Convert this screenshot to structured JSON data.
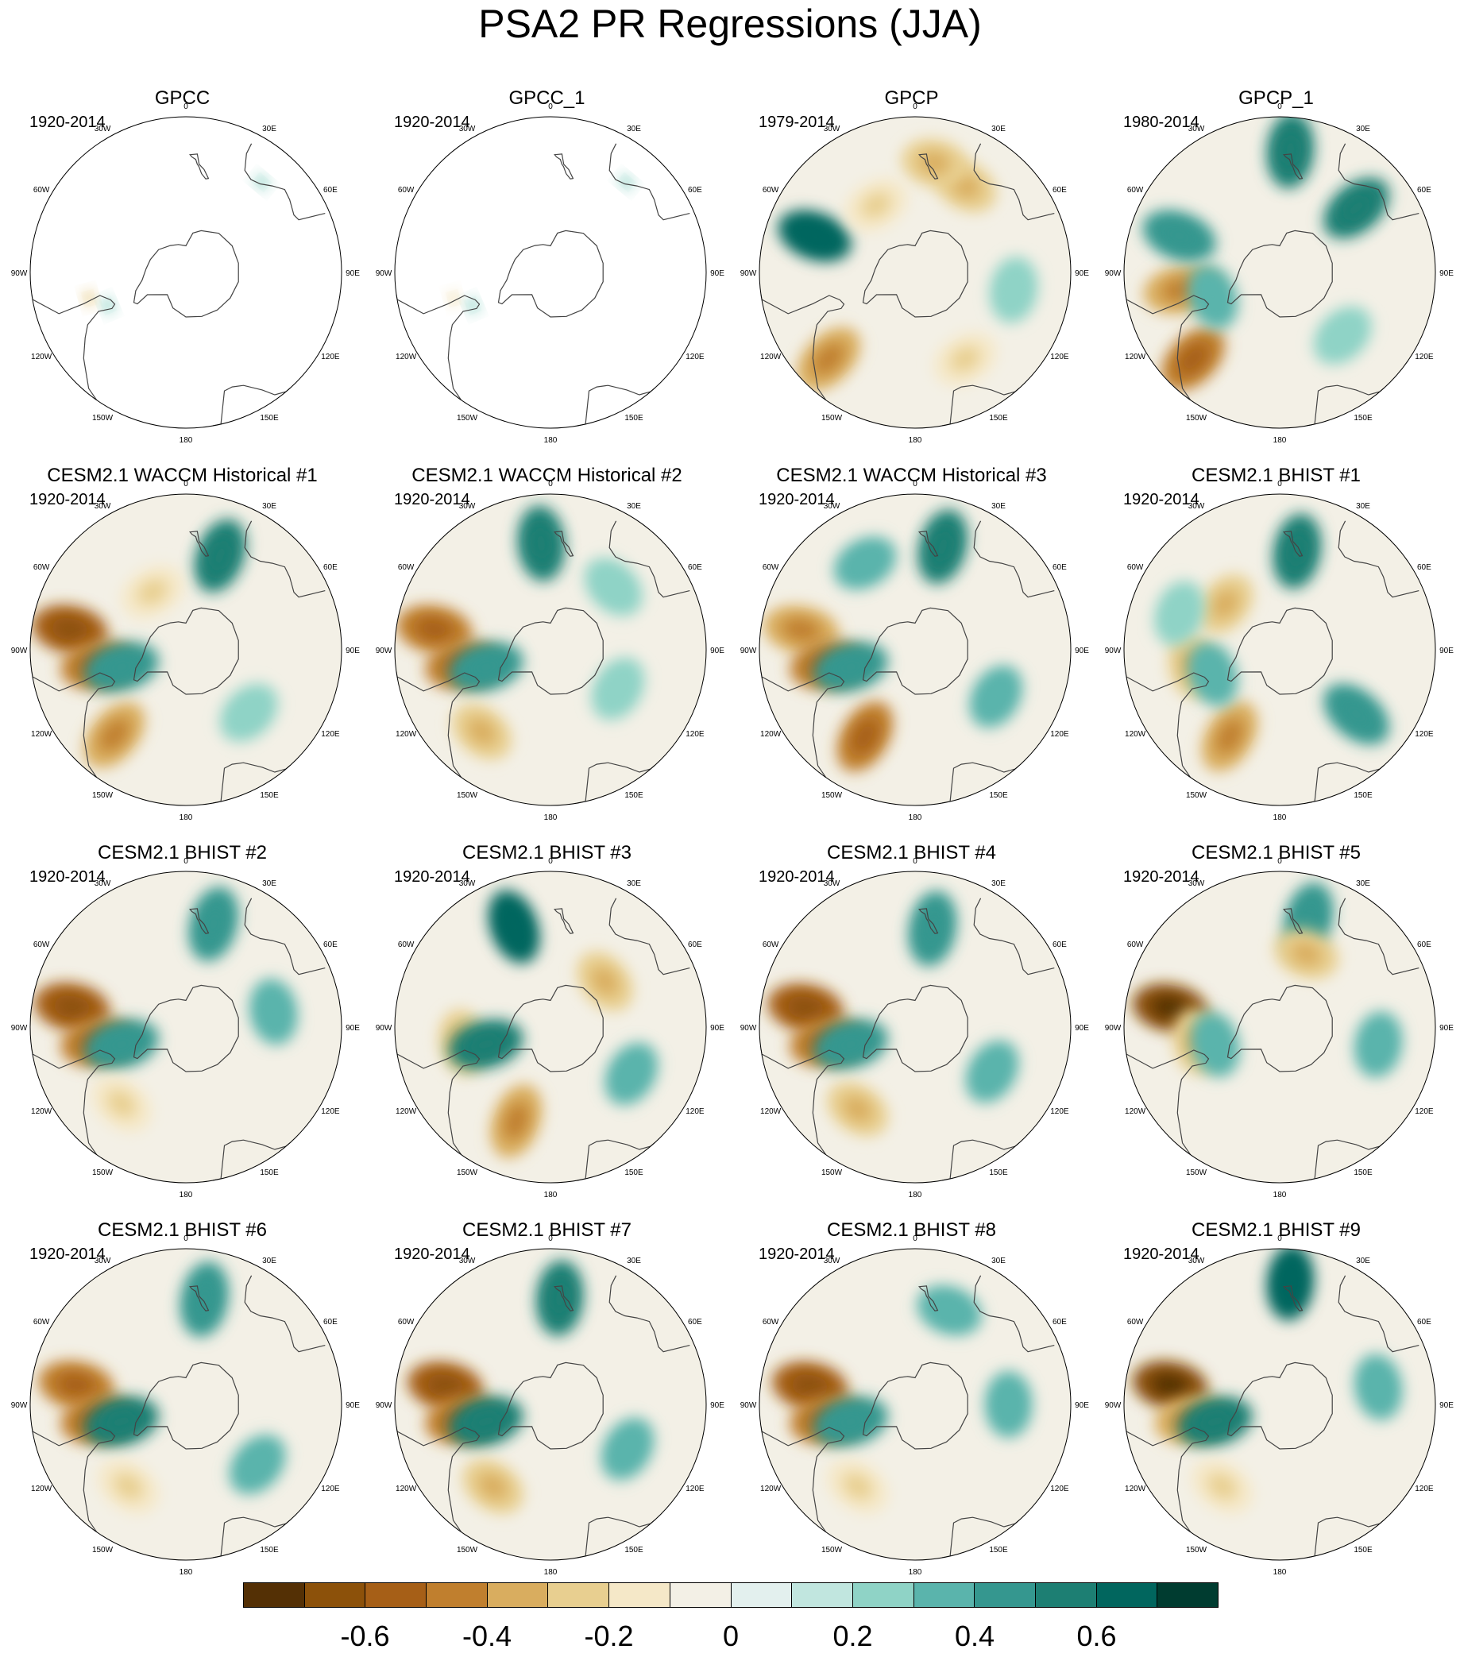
{
  "title": "PSA2 PR Regressions (JJA)",
  "chart_data": {
    "type": "heatmap",
    "projection": "south polar stereographic",
    "title": "PSA2 PR Regressions (JJA)",
    "longitude_labels": [
      "0",
      "30E",
      "60E",
      "90E",
      "120E",
      "150E",
      "180",
      "150W",
      "120W",
      "90W",
      "60W",
      "30W"
    ],
    "panels": [
      {
        "title": "GPCC",
        "period": "1920-2014",
        "coverage": "land only",
        "features": [
          {
            "lon": -75,
            "lat": -45,
            "value": -0.25
          },
          {
            "lon": -67,
            "lat": -52,
            "value": 0.2
          },
          {
            "lon": 140,
            "lat": -37,
            "value": 0.2
          }
        ]
      },
      {
        "title": "GPCC_1",
        "period": "1920-2014",
        "coverage": "land only",
        "features": [
          {
            "lon": -75,
            "lat": -45,
            "value": -0.2
          },
          {
            "lon": -67,
            "lat": -52,
            "value": 0.2
          },
          {
            "lon": 140,
            "lat": -37,
            "value": 0.25
          }
        ]
      },
      {
        "title": "GPCP",
        "period": "1979-2014",
        "features": [
          {
            "lon": -45,
            "lat": -35,
            "value": -0.4
          },
          {
            "lon": -110,
            "lat": -42,
            "value": 0.6
          },
          {
            "lon": 150,
            "lat": -45,
            "value": -0.3
          },
          {
            "lon": 170,
            "lat": -40,
            "value": -0.3
          },
          {
            "lon": 80,
            "lat": -45,
            "value": 0.2
          },
          {
            "lon": 30,
            "lat": -45,
            "value": -0.2
          },
          {
            "lon": -150,
            "lat": -55,
            "value": -0.2
          }
        ]
      },
      {
        "title": "GPCP_1",
        "period": "1980-2014",
        "features": [
          {
            "lon": -45,
            "lat": -35,
            "value": -0.5
          },
          {
            "lon": -80,
            "lat": -45,
            "value": -0.4
          },
          {
            "lon": -110,
            "lat": -42,
            "value": 0.4
          },
          {
            "lon": 175,
            "lat": -35,
            "value": 0.5
          },
          {
            "lon": 130,
            "lat": -45,
            "value": 0.5
          },
          {
            "lon": -70,
            "lat": -58,
            "value": 0.3
          },
          {
            "lon": 45,
            "lat": -50,
            "value": 0.2
          }
        ]
      },
      {
        "title": "CESM2.1 WACCM Historical #1",
        "period": "1920-2014",
        "features": [
          {
            "lon": -100,
            "lat": -37,
            "value": -0.6
          },
          {
            "lon": -80,
            "lat": -50,
            "value": -0.5
          },
          {
            "lon": -75,
            "lat": -60,
            "value": 0.4
          },
          {
            "lon": -40,
            "lat": -40,
            "value": -0.4
          },
          {
            "lon": 160,
            "lat": -45,
            "value": 0.5
          },
          {
            "lon": 45,
            "lat": -50,
            "value": 0.2
          },
          {
            "lon": -150,
            "lat": -60,
            "value": -0.2
          }
        ]
      },
      {
        "title": "CESM2.1 WACCM Historical #2",
        "period": "1920-2014",
        "features": [
          {
            "lon": -100,
            "lat": -37,
            "value": -0.5
          },
          {
            "lon": -80,
            "lat": -50,
            "value": -0.5
          },
          {
            "lon": -75,
            "lat": -60,
            "value": 0.4
          },
          {
            "lon": -40,
            "lat": -42,
            "value": -0.3
          },
          {
            "lon": -175,
            "lat": -42,
            "value": 0.5
          },
          {
            "lon": 60,
            "lat": -55,
            "value": 0.2
          },
          {
            "lon": 135,
            "lat": -50,
            "value": 0.2
          }
        ]
      },
      {
        "title": "CESM2.1 WACCM Historical #3",
        "period": "1920-2014",
        "features": [
          {
            "lon": -100,
            "lat": -38,
            "value": -0.4
          },
          {
            "lon": -80,
            "lat": -50,
            "value": -0.5
          },
          {
            "lon": -75,
            "lat": -60,
            "value": 0.4
          },
          {
            "lon": -30,
            "lat": -45,
            "value": -0.5
          },
          {
            "lon": 165,
            "lat": -42,
            "value": 0.5
          },
          {
            "lon": -150,
            "lat": -45,
            "value": 0.3
          },
          {
            "lon": 60,
            "lat": -48,
            "value": 0.3
          }
        ]
      },
      {
        "title": "CESM2.1 BHIST #1",
        "period": "1920-2014",
        "features": [
          {
            "lon": -30,
            "lat": -45,
            "value": -0.4
          },
          {
            "lon": -80,
            "lat": -50,
            "value": -0.3
          },
          {
            "lon": -70,
            "lat": -58,
            "value": 0.3
          },
          {
            "lon": 170,
            "lat": -45,
            "value": 0.5
          },
          {
            "lon": 50,
            "lat": -45,
            "value": 0.4
          },
          {
            "lon": -130,
            "lat": -58,
            "value": -0.3
          },
          {
            "lon": -110,
            "lat": -42,
            "value": 0.2
          }
        ]
      },
      {
        "title": "CESM2.1 BHIST #2",
        "period": "1920-2014",
        "features": [
          {
            "lon": -100,
            "lat": -38,
            "value": -0.6
          },
          {
            "lon": -80,
            "lat": -50,
            "value": -0.5
          },
          {
            "lon": -75,
            "lat": -60,
            "value": 0.4
          },
          {
            "lon": 165,
            "lat": -42,
            "value": 0.4
          },
          {
            "lon": 100,
            "lat": -50,
            "value": 0.3
          },
          {
            "lon": -40,
            "lat": -45,
            "value": -0.2
          }
        ]
      },
      {
        "title": "CESM2.1 BHIST #3",
        "period": "1920-2014",
        "features": [
          {
            "lon": -20,
            "lat": -45,
            "value": -0.4
          },
          {
            "lon": -80,
            "lat": -50,
            "value": -0.3
          },
          {
            "lon": -75,
            "lat": -60,
            "value": 0.5
          },
          {
            "lon": -160,
            "lat": -42,
            "value": 0.6
          },
          {
            "lon": 60,
            "lat": -48,
            "value": 0.3
          },
          {
            "lon": 130,
            "lat": -58,
            "value": -0.3
          }
        ]
      },
      {
        "title": "CESM2.1 BHIST #4",
        "period": "1920-2014",
        "features": [
          {
            "lon": -100,
            "lat": -40,
            "value": -0.6
          },
          {
            "lon": -80,
            "lat": -50,
            "value": -0.5
          },
          {
            "lon": -75,
            "lat": -60,
            "value": 0.4
          },
          {
            "lon": 170,
            "lat": -45,
            "value": 0.4
          },
          {
            "lon": 60,
            "lat": -50,
            "value": 0.3
          },
          {
            "lon": -35,
            "lat": -45,
            "value": -0.3
          }
        ]
      },
      {
        "title": "CESM2.1 BHIST #5",
        "period": "1920-2014",
        "features": [
          {
            "lon": -100,
            "lat": -40,
            "value": -0.7
          },
          {
            "lon": -80,
            "lat": -52,
            "value": -0.3
          },
          {
            "lon": -75,
            "lat": -60,
            "value": 0.3
          },
          {
            "lon": 165,
            "lat": -40,
            "value": 0.4
          },
          {
            "lon": 80,
            "lat": -45,
            "value": 0.3
          },
          {
            "lon": 160,
            "lat": -55,
            "value": -0.3
          }
        ]
      },
      {
        "title": "CESM2.1 BHIST #6",
        "period": "1920-2014",
        "features": [
          {
            "lon": -100,
            "lat": -40,
            "value": -0.5
          },
          {
            "lon": -80,
            "lat": -50,
            "value": -0.5
          },
          {
            "lon": -75,
            "lat": -60,
            "value": 0.5
          },
          {
            "lon": 170,
            "lat": -42,
            "value": 0.4
          },
          {
            "lon": 50,
            "lat": -48,
            "value": 0.3
          },
          {
            "lon": -35,
            "lat": -45,
            "value": -0.2
          }
        ]
      },
      {
        "title": "CESM2.1 BHIST #7",
        "period": "1920-2014",
        "features": [
          {
            "lon": -100,
            "lat": -42,
            "value": -0.6
          },
          {
            "lon": -80,
            "lat": -50,
            "value": -0.5
          },
          {
            "lon": -75,
            "lat": -60,
            "value": 0.5
          },
          {
            "lon": 175,
            "lat": -42,
            "value": 0.5
          },
          {
            "lon": 60,
            "lat": -50,
            "value": 0.3
          },
          {
            "lon": -35,
            "lat": -45,
            "value": -0.3
          }
        ]
      },
      {
        "title": "CESM2.1 BHIST #8",
        "period": "1920-2014",
        "features": [
          {
            "lon": -100,
            "lat": -42,
            "value": -0.6
          },
          {
            "lon": -80,
            "lat": -50,
            "value": -0.5
          },
          {
            "lon": -75,
            "lat": -60,
            "value": 0.4
          },
          {
            "lon": 90,
            "lat": -48,
            "value": 0.3
          },
          {
            "lon": 160,
            "lat": -45,
            "value": 0.3
          },
          {
            "lon": -35,
            "lat": -45,
            "value": -0.2
          }
        ]
      },
      {
        "title": "CESM2.1 BHIST #9",
        "period": "1920-2014",
        "features": [
          {
            "lon": -100,
            "lat": -40,
            "value": -0.7
          },
          {
            "lon": -80,
            "lat": -50,
            "value": -0.4
          },
          {
            "lon": -75,
            "lat": -60,
            "value": 0.5
          },
          {
            "lon": 175,
            "lat": -35,
            "value": 0.6
          },
          {
            "lon": 100,
            "lat": -45,
            "value": 0.3
          },
          {
            "lon": -35,
            "lat": -45,
            "value": -0.2
          }
        ]
      }
    ],
    "colorbar": {
      "levels": [
        -0.7,
        -0.6,
        -0.5,
        -0.4,
        -0.3,
        -0.2,
        -0.1,
        0,
        0.1,
        0.2,
        0.3,
        0.4,
        0.5,
        0.6,
        0.7
      ],
      "tick_labels": [
        {
          "text": "-0.6",
          "value": -0.6
        },
        {
          "text": "-0.4",
          "value": -0.4
        },
        {
          "text": "-0.2",
          "value": -0.2
        },
        {
          "text": "0",
          "value": 0
        },
        {
          "text": "0.2",
          "value": 0.2
        },
        {
          "text": "0.4",
          "value": 0.4
        },
        {
          "text": "0.6",
          "value": 0.6
        }
      ],
      "colors": [
        "#543005",
        "#8c510a",
        "#a65f17",
        "#c07f2e",
        "#d9ad5f",
        "#e8cf90",
        "#f5e8c8",
        "#f3f0e6",
        "#e3f0ee",
        "#c1e6df",
        "#8fd3c6",
        "#5ab4ac",
        "#35978f",
        "#1d7f73",
        "#01665e",
        "#003c30"
      ]
    }
  }
}
